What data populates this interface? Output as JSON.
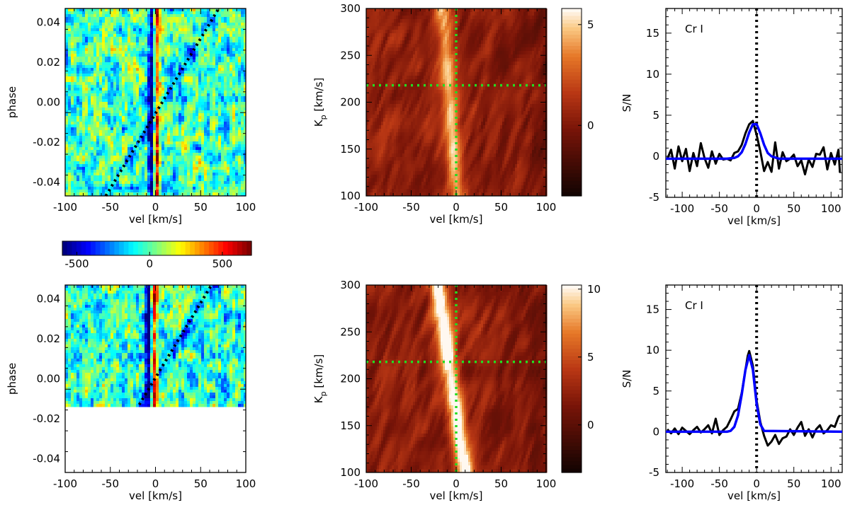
{
  "chart_data": [
    {
      "id": "top-phase-map",
      "type": "heatmap",
      "xlabel": "vel [km/s]",
      "ylabel": "phase",
      "xlim": [
        -100,
        100
      ],
      "ylim": [
        -0.047,
        0.047
      ],
      "xticks": [
        "-100",
        "-50",
        "0",
        "50",
        "100"
      ],
      "yticks": [
        "0.04",
        "0.02",
        "0.00",
        "-0.02",
        "-0.04"
      ],
      "ytick_values": [
        0.04,
        0.02,
        0.0,
        -0.02,
        -0.04
      ],
      "phase_coverage": [
        -0.047,
        0.047
      ],
      "signal_velocity": 0,
      "trail": {
        "x1": -55,
        "y1": -0.047,
        "x2": 70,
        "y2": 0.047
      }
    },
    {
      "id": "colorbar-phase",
      "type": "colorbar",
      "range": [
        -600,
        700
      ],
      "ticks": [
        "-500",
        "0",
        "500"
      ],
      "tick_values": [
        -500,
        0,
        500
      ],
      "colormap": "jet"
    },
    {
      "id": "bottom-phase-map",
      "type": "heatmap",
      "xlabel": "vel [km/s]",
      "ylabel": "phase",
      "xlim": [
        -100,
        100
      ],
      "ylim": [
        -0.047,
        0.047
      ],
      "xticks": [
        "-100",
        "-50",
        "0",
        "50",
        "100"
      ],
      "yticks": [
        "0.04",
        "0.02",
        "0.00",
        "-0.02",
        "-0.04"
      ],
      "ytick_values": [
        0.04,
        0.02,
        0.0,
        -0.02,
        -0.04
      ],
      "phase_coverage": [
        -0.013,
        0.047
      ],
      "signal_velocity": -3,
      "trail": {
        "x1": -18,
        "y1": -0.013,
        "x2": 62,
        "y2": 0.047
      }
    },
    {
      "id": "top-kp-map",
      "type": "heatmap",
      "xlabel": "vel [km/s]",
      "ylabel": "Kp [km/s]",
      "ylabel_main": "K",
      "ylabel_sub": "p",
      "ylabel_tail": " [km/s]",
      "xlim": [
        -100,
        100
      ],
      "ylim": [
        100,
        300
      ],
      "xticks": [
        "-100",
        "-50",
        "0",
        "50",
        "100"
      ],
      "yticks": [
        "300",
        "250",
        "200",
        "150",
        "100"
      ],
      "ytick_values": [
        300,
        250,
        200,
        150,
        100
      ],
      "crosshair": {
        "vel": 0,
        "kp": 218
      },
      "colorbar_ticks": [
        "5",
        "0"
      ],
      "colorbar_tick_values": [
        5,
        0
      ],
      "colorbar_range": [
        -3.5,
        5.8
      ]
    },
    {
      "id": "bottom-kp-map",
      "type": "heatmap",
      "xlabel": "vel [km/s]",
      "ylabel": "Kp [km/s]",
      "ylabel_main": "K",
      "ylabel_sub": "p",
      "ylabel_tail": " [km/s]",
      "xlim": [
        -100,
        100
      ],
      "ylim": [
        100,
        300
      ],
      "xticks": [
        "-100",
        "-50",
        "0",
        "50",
        "100"
      ],
      "yticks": [
        "300",
        "250",
        "200",
        "150",
        "100"
      ],
      "ytick_values": [
        300,
        250,
        200,
        150,
        100
      ],
      "crosshair": {
        "vel": 0,
        "kp": 218
      },
      "colorbar_ticks": [
        "10",
        "5",
        "0"
      ],
      "colorbar_tick_values": [
        10,
        5,
        0
      ],
      "colorbar_range": [
        -3.5,
        10.3
      ]
    },
    {
      "id": "top-sn",
      "type": "line",
      "label": "Cr I",
      "xlabel": "vel [km/s]",
      "ylabel": "S/N",
      "xlim": [
        -122,
        115
      ],
      "ylim": [
        -5,
        18
      ],
      "xticks": [
        "-100",
        "-50",
        "0",
        "50",
        "100"
      ],
      "xtick_values": [
        -100,
        -50,
        0,
        50,
        100
      ],
      "yticks": [
        "15",
        "10",
        "5",
        "0",
        "-5"
      ],
      "ytick_values": [
        15,
        10,
        5,
        0,
        -5
      ],
      "vline": 0,
      "series": [
        {
          "color": "#000000",
          "x": [
            -120,
            -115,
            -110,
            -105,
            -100,
            -95,
            -90,
            -85,
            -80,
            -75,
            -70,
            -65,
            -60,
            -55,
            -50,
            -45,
            -40,
            -35,
            -30,
            -25,
            -20,
            -15,
            -10,
            -5,
            0,
            5,
            10,
            15,
            20,
            25,
            30,
            35,
            40,
            45,
            50,
            55,
            60,
            65,
            70,
            75,
            80,
            85,
            90,
            95,
            100,
            105,
            110,
            112
          ],
          "values": [
            -0.3,
            0.8,
            -1.5,
            1.2,
            -0.6,
            0.9,
            -1.8,
            0.4,
            -1.2,
            1.6,
            -0.2,
            -1.4,
            0.6,
            -0.9,
            0.3,
            -0.4,
            -0.3,
            -0.5,
            0.4,
            0.6,
            1.4,
            2.8,
            3.9,
            4.3,
            2.6,
            0.6,
            -1.8,
            -0.7,
            -1.9,
            1.7,
            -1.5,
            0.5,
            -0.6,
            -0.3,
            0.2,
            -1.2,
            -0.5,
            -2.2,
            -0.4,
            -1.3,
            0.3,
            0.2,
            1.1,
            -1.6,
            0.4,
            -1.0,
            0.8,
            -2.0
          ]
        },
        {
          "color": "#0000ff",
          "x": [
            -122,
            -40,
            -30,
            -25,
            -20,
            -15,
            -10,
            -5,
            0,
            5,
            10,
            15,
            20,
            30,
            115
          ],
          "values": [
            -0.3,
            -0.3,
            -0.2,
            0.0,
            0.5,
            1.5,
            2.9,
            3.9,
            3.9,
            2.8,
            1.4,
            0.4,
            0.0,
            -0.3,
            -0.3
          ]
        }
      ]
    },
    {
      "id": "bottom-sn",
      "type": "line",
      "label": "Cr I",
      "xlabel": "vel [km/s]",
      "ylabel": "S/N",
      "xlim": [
        -122,
        115
      ],
      "ylim": [
        -5,
        18
      ],
      "xticks": [
        "-100",
        "-50",
        "0",
        "50",
        "100"
      ],
      "xtick_values": [
        -100,
        -50,
        0,
        50,
        100
      ],
      "yticks": [
        "15",
        "10",
        "5",
        "0",
        "-5"
      ],
      "ytick_values": [
        15,
        10,
        5,
        0,
        -5
      ],
      "vline": 0,
      "series": [
        {
          "color": "#000000",
          "x": [
            -120,
            -115,
            -110,
            -105,
            -100,
            -95,
            -90,
            -85,
            -80,
            -75,
            -70,
            -65,
            -60,
            -55,
            -50,
            -45,
            -40,
            -35,
            -30,
            -25,
            -20,
            -15,
            -12,
            -10,
            -5,
            0,
            5,
            10,
            15,
            20,
            25,
            30,
            35,
            40,
            45,
            50,
            55,
            60,
            65,
            70,
            75,
            80,
            85,
            90,
            95,
            100,
            105,
            110,
            112
          ],
          "values": [
            0.3,
            -0.2,
            0.4,
            -0.3,
            0.5,
            0.1,
            -0.3,
            0.2,
            0.6,
            -0.1,
            0.3,
            0.8,
            -0.2,
            1.6,
            -0.4,
            0.2,
            0.6,
            1.5,
            2.5,
            2.8,
            4.8,
            7.6,
            9.3,
            9.9,
            8.1,
            3.8,
            1.2,
            -0.5,
            -1.7,
            -1.2,
            -0.4,
            -1.5,
            -0.8,
            -0.6,
            0.3,
            -0.4,
            0.5,
            1.2,
            -0.5,
            0.3,
            -0.7,
            0.3,
            0.8,
            -0.2,
            0.2,
            0.8,
            0.6,
            1.8,
            2.0
          ]
        },
        {
          "color": "#0000ff",
          "x": [
            -122,
            -40,
            -35,
            -30,
            -25,
            -20,
            -15,
            -10,
            -5,
            0,
            5,
            10,
            115
          ],
          "values": [
            0,
            0,
            0.1,
            0.6,
            2.0,
            4.6,
            7.6,
            9.4,
            7.6,
            3.4,
            0.9,
            0.1,
            0
          ]
        }
      ]
    }
  ]
}
